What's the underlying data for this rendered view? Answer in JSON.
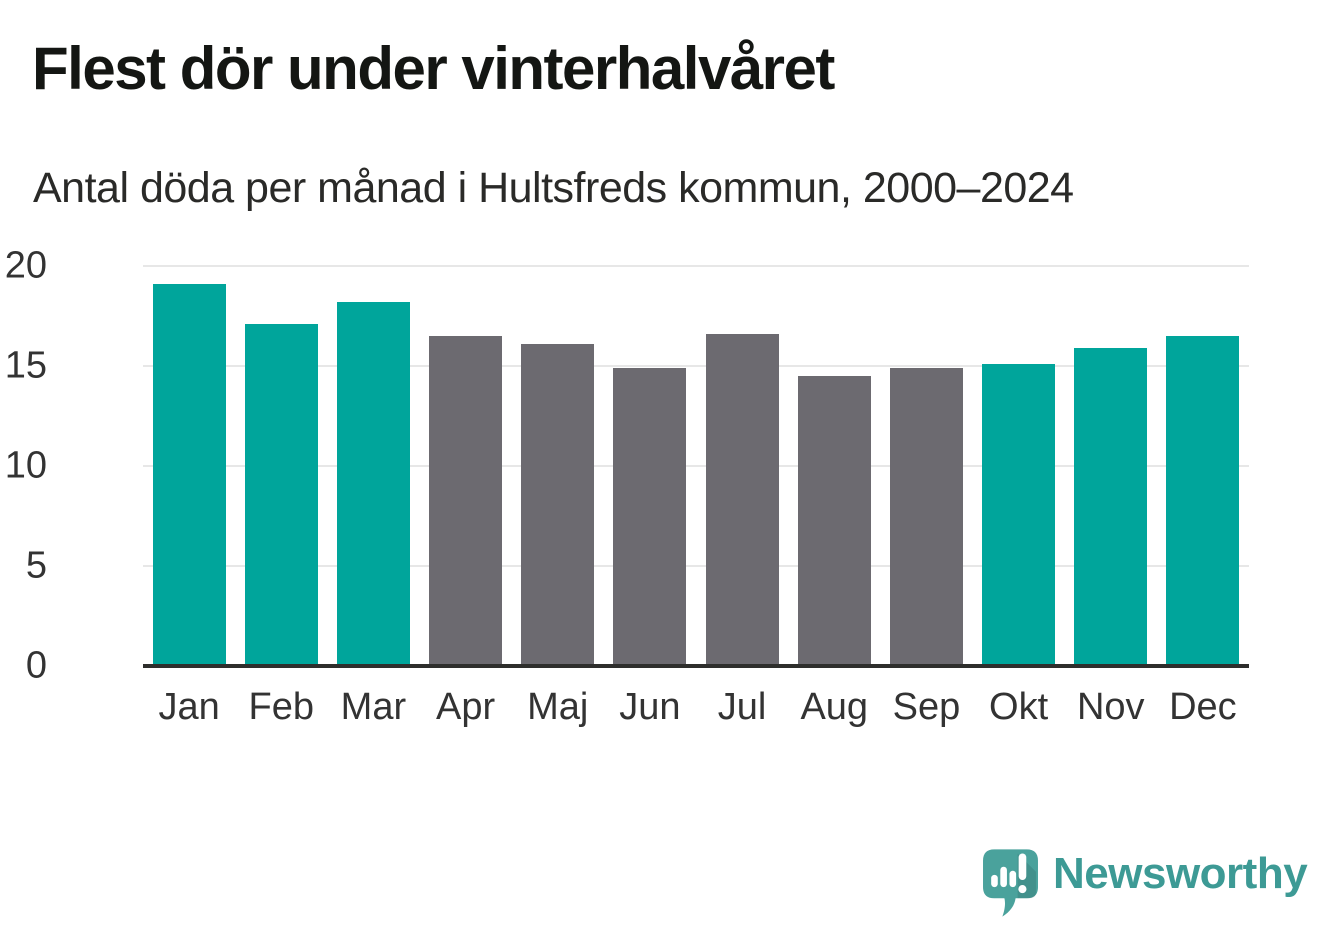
{
  "header": {
    "title": "Flest dör under vinterhalvåret",
    "subtitle": "Antal döda per månad i Hultsfreds kommun, 2000–2024"
  },
  "chart_data": {
    "type": "bar",
    "title": "Flest dör under vinterhalvåret",
    "subtitle": "Antal döda per månad i Hultsfreds kommun, 2000–2024",
    "categories": [
      "Jan",
      "Feb",
      "Mar",
      "Apr",
      "Maj",
      "Jun",
      "Jul",
      "Aug",
      "Sep",
      "Okt",
      "Nov",
      "Dec"
    ],
    "values": [
      19.1,
      17.1,
      18.2,
      16.5,
      16.1,
      14.9,
      16.6,
      14.5,
      14.9,
      15.1,
      15.9,
      16.5
    ],
    "highlighted_categories": [
      "Jan",
      "Feb",
      "Mar",
      "Okt",
      "Nov",
      "Dec"
    ],
    "colors": {
      "highlight": "#00a59b",
      "default": "#6c6a70",
      "gridline": "#e7e7e7",
      "axis": "#2e2e2c",
      "tick_label": "#333333"
    },
    "xlabel": "",
    "ylabel": "",
    "ylim": [
      0,
      20
    ],
    "yticks": [
      0,
      5,
      10,
      15,
      20
    ],
    "grid": true,
    "legend": false
  },
  "footer": {
    "brand": "Newsworthy",
    "brand_color": "#3d9a95",
    "icon_bubble_color": "#4aa29c"
  }
}
